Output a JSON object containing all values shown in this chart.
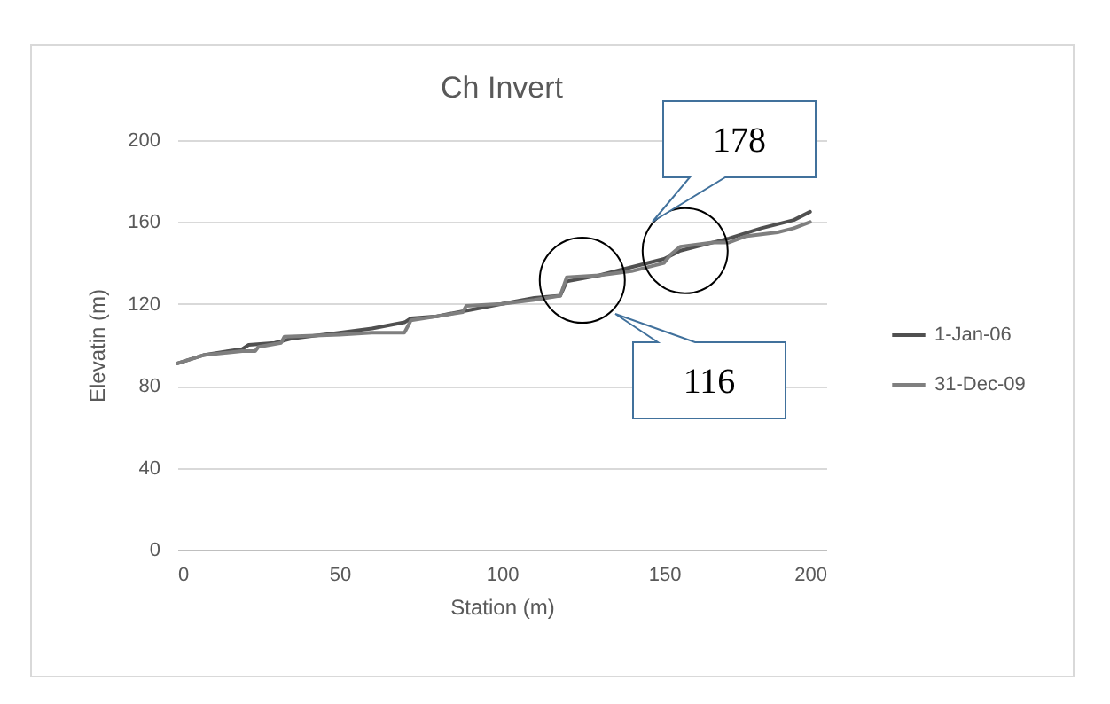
{
  "chart_data": {
    "type": "line",
    "title": "Ch Invert",
    "xlabel": "Station (m)",
    "ylabel": "Elevatin (m)",
    "xlim": [
      0,
      200
    ],
    "xticks": [
      0,
      50,
      100,
      150,
      200
    ],
    "ylim": [
      0,
      200
    ],
    "yticks": [
      0,
      40,
      80,
      120,
      160,
      200
    ],
    "grid": "y",
    "legend": "right",
    "annotations": [
      "178",
      "116"
    ],
    "series": [
      {
        "name": "1-Jan-06",
        "color": "#505050",
        "x": [
          0,
          8,
          20,
          22,
          30,
          35,
          50,
          60,
          70,
          72,
          80,
          90,
          100,
          110,
          118,
          120,
          130,
          140,
          150,
          155,
          160,
          170,
          180,
          190,
          195
        ],
        "values": [
          91,
          95,
          98,
          100,
          101,
          103,
          106,
          108,
          111,
          113,
          114,
          117,
          120,
          123,
          124,
          131,
          134,
          138,
          142,
          146,
          148,
          152,
          157,
          161,
          165
        ]
      },
      {
        "name": "31-Dec-09",
        "color": "#7f7f7f",
        "x": [
          0,
          8,
          20,
          24,
          25,
          32,
          33,
          50,
          60,
          70,
          72,
          88,
          89,
          100,
          110,
          118,
          120,
          130,
          140,
          150,
          152,
          155,
          165,
          170,
          175,
          185,
          190,
          195
        ],
        "values": [
          91,
          95,
          97,
          97,
          99,
          101,
          104,
          105,
          106,
          106,
          112,
          116,
          119,
          120,
          122,
          124,
          133,
          134,
          136,
          140,
          144,
          148,
          150,
          150,
          153,
          155,
          157,
          160
        ]
      }
    ]
  }
}
